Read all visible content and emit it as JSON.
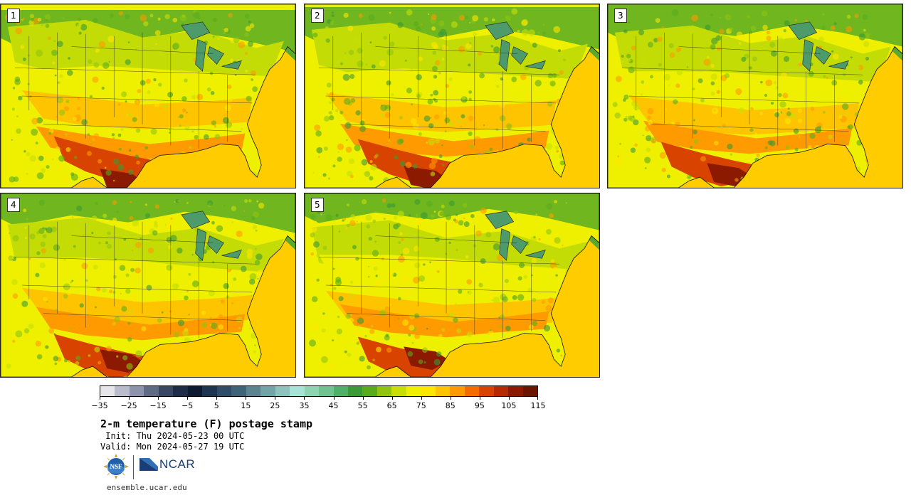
{
  "panels": [
    {
      "label": "1",
      "variant": 1
    },
    {
      "label": "2",
      "variant": 2
    },
    {
      "label": "3",
      "variant": 3
    },
    {
      "label": "4",
      "variant": 4
    },
    {
      "label": "5",
      "variant": 5
    }
  ],
  "colorbar": {
    "colors": [
      "#e6e6ea",
      "#b9bccb",
      "#8c93aa",
      "#5f6b85",
      "#3a4763",
      "#1f2c47",
      "#0e1a30",
      "#1e3552",
      "#2f4d69",
      "#3f6479",
      "#5b8490",
      "#75a4a8",
      "#8fc2bd",
      "#a7e3d6",
      "#8ed3b2",
      "#6ec38e",
      "#4eb167",
      "#3a9a35",
      "#5aab1c",
      "#90c410",
      "#c8de05",
      "#eef000",
      "#ffe600",
      "#ffc400",
      "#ff9a00",
      "#f56b00",
      "#d84400",
      "#b52a00",
      "#8b1a00",
      "#6a1500"
    ],
    "tick_labels": [
      "−35",
      "−25",
      "−15",
      "−5",
      "5",
      "15",
      "25",
      "35",
      "45",
      "55",
      "65",
      "75",
      "85",
      "95",
      "105",
      "115"
    ]
  },
  "title": "2-m temperature (F) postage stamp",
  "init_line": " Init: Thu 2024-05-23 00 UTC",
  "valid_line": "Valid: Mon 2024-05-27 19 UTC",
  "logos": {
    "nsf_text": "NSF",
    "ncar_text": "NCAR"
  },
  "footer_url": "ensemble.ucar.edu"
}
